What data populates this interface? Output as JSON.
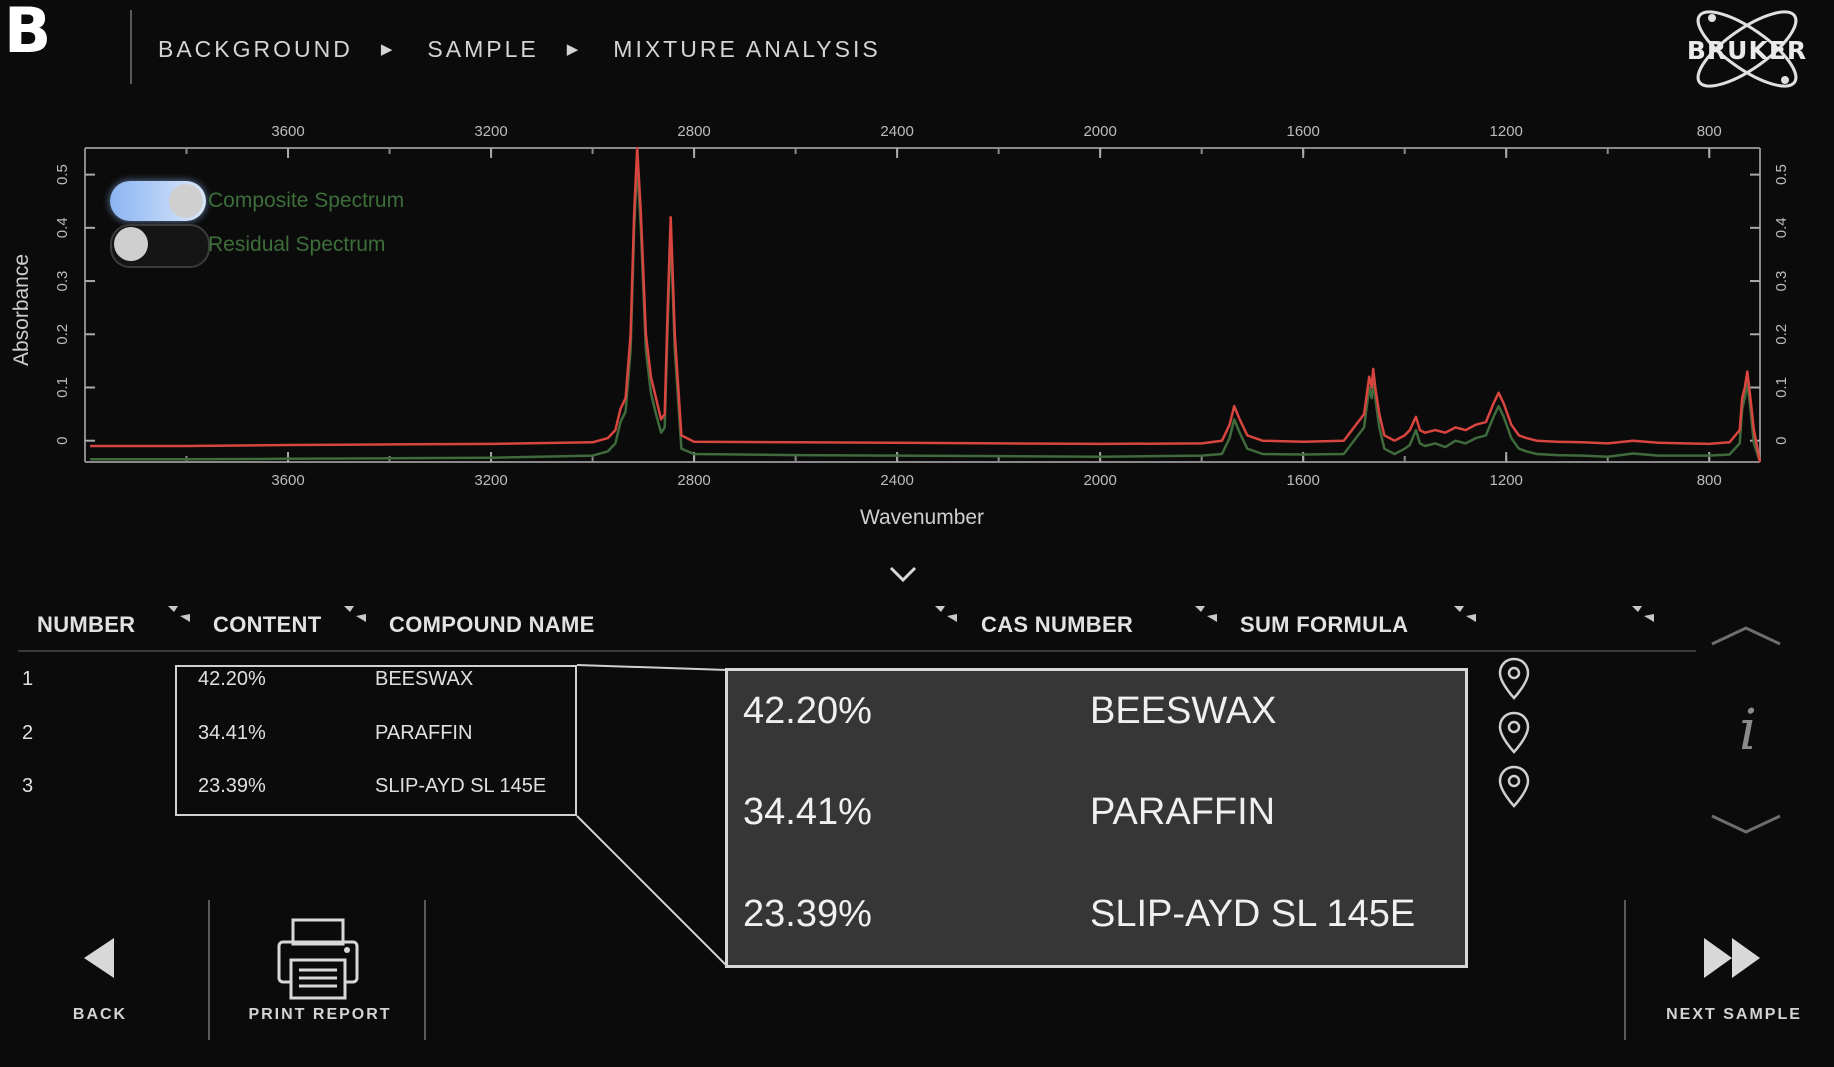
{
  "panel_label": "B",
  "breadcrumb": {
    "items": [
      "BACKGROUND",
      "SAMPLE",
      "MIXTURE ANALYSIS"
    ],
    "separator_icon": "triangle-right-icon"
  },
  "logo": {
    "text": "BRUKER",
    "icon": "atom-orbit-icon"
  },
  "toggles": {
    "composite": {
      "label": "Composite Spectrum",
      "on": true
    },
    "residual": {
      "label": "Residual Spectrum",
      "on": false
    }
  },
  "chart_data": {
    "type": "line",
    "xlabel": "Wavenumber",
    "ylabel": "Absorbance",
    "xlim": [
      4000,
      700
    ],
    "ylim": [
      -0.04,
      0.55
    ],
    "x_ticks": [
      3600,
      3200,
      2800,
      2400,
      2000,
      1600,
      1200,
      800
    ],
    "y_ticks": [
      0,
      0.1,
      0.2,
      0.3,
      0.4,
      0.5
    ],
    "legend": "top-left",
    "grid": false,
    "series": [
      {
        "color": "#d9453f",
        "x": [
          3990,
          3800,
          3600,
          3400,
          3200,
          3000,
          2970,
          2955,
          2945,
          2935,
          2925,
          2918,
          2912,
          2905,
          2895,
          2885,
          2875,
          2865,
          2858,
          2852,
          2846,
          2838,
          2825,
          2800,
          2600,
          2400,
          2200,
          2000,
          1800,
          1760,
          1745,
          1736,
          1725,
          1710,
          1680,
          1600,
          1520,
          1480,
          1470,
          1465,
          1462,
          1458,
          1450,
          1440,
          1420,
          1400,
          1390,
          1378,
          1370,
          1360,
          1340,
          1320,
          1300,
          1280,
          1260,
          1240,
          1225,
          1215,
          1205,
          1190,
          1175,
          1160,
          1140,
          1100,
          1050,
          1000,
          950,
          900,
          850,
          800,
          760,
          740,
          735,
          730,
          725,
          719,
          712,
          700
        ],
        "values": [
          -0.01,
          -0.01,
          -0.008,
          -0.007,
          -0.006,
          -0.003,
          0.005,
          0.02,
          0.06,
          0.08,
          0.2,
          0.43,
          0.55,
          0.43,
          0.2,
          0.12,
          0.08,
          0.04,
          0.05,
          0.25,
          0.42,
          0.2,
          0.01,
          -0.002,
          -0.003,
          -0.004,
          -0.005,
          -0.006,
          -0.005,
          0.0,
          0.03,
          0.065,
          0.04,
          0.01,
          0.0,
          -0.002,
          0.0,
          0.05,
          0.12,
          0.1,
          0.135,
          0.1,
          0.05,
          0.01,
          0.0,
          0.01,
          0.02,
          0.045,
          0.02,
          0.015,
          0.02,
          0.015,
          0.025,
          0.02,
          0.03,
          0.035,
          0.07,
          0.09,
          0.07,
          0.03,
          0.01,
          0.005,
          0.0,
          -0.002,
          -0.003,
          -0.005,
          0.0,
          -0.004,
          -0.005,
          -0.006,
          -0.003,
          0.02,
          0.08,
          0.1,
          0.13,
          0.08,
          0.02,
          -0.04
        ]
      },
      {
        "color": "#3f6a3c",
        "x": [
          3990,
          3800,
          3600,
          3400,
          3200,
          3000,
          2970,
          2955,
          2945,
          2935,
          2925,
          2918,
          2912,
          2905,
          2895,
          2885,
          2875,
          2865,
          2858,
          2852,
          2846,
          2838,
          2825,
          2800,
          2600,
          2400,
          2200,
          2000,
          1800,
          1760,
          1745,
          1736,
          1725,
          1710,
          1680,
          1600,
          1520,
          1480,
          1470,
          1465,
          1462,
          1458,
          1450,
          1440,
          1420,
          1400,
          1390,
          1378,
          1370,
          1360,
          1340,
          1320,
          1300,
          1280,
          1260,
          1240,
          1225,
          1215,
          1205,
          1190,
          1175,
          1160,
          1140,
          1100,
          1050,
          1000,
          950,
          900,
          850,
          800,
          760,
          740,
          735,
          730,
          725,
          719,
          712,
          700
        ],
        "values": [
          -0.035,
          -0.035,
          -0.034,
          -0.033,
          -0.032,
          -0.028,
          -0.02,
          -0.005,
          0.035,
          0.055,
          0.17,
          0.4,
          0.52,
          0.4,
          0.17,
          0.09,
          0.05,
          0.015,
          0.025,
          0.22,
          0.39,
          0.17,
          -0.015,
          -0.025,
          -0.027,
          -0.028,
          -0.029,
          -0.03,
          -0.028,
          -0.025,
          0.005,
          0.04,
          0.015,
          -0.015,
          -0.025,
          -0.026,
          -0.025,
          0.025,
          0.1,
          0.08,
          0.11,
          0.08,
          0.025,
          -0.015,
          -0.025,
          -0.015,
          -0.008,
          0.02,
          -0.005,
          -0.01,
          -0.005,
          -0.012,
          0.0,
          -0.005,
          0.005,
          0.01,
          0.045,
          0.065,
          0.045,
          0.005,
          -0.015,
          -0.02,
          -0.025,
          -0.027,
          -0.028,
          -0.03,
          -0.024,
          -0.028,
          -0.028,
          -0.028,
          -0.026,
          -0.005,
          0.06,
          0.08,
          0.11,
          0.06,
          -0.005,
          -0.04
        ]
      }
    ]
  },
  "table": {
    "headers": [
      "NUMBER",
      "CONTENT",
      "COMPOUND NAME",
      "CAS NUMBER",
      "SUM FORMULA"
    ],
    "sort_icon": "sort-arrows-icon",
    "rows": [
      {
        "number": "1",
        "content": "42.20%",
        "name": "BEESWAX"
      },
      {
        "number": "2",
        "content": "34.41%",
        "name": "PARAFFIN"
      },
      {
        "number": "3",
        "content": "23.39%",
        "name": "SLIP-AYD SL 145E"
      }
    ],
    "row_icon": "location-pin-icon"
  },
  "side": {
    "info": "i",
    "up_icon": "chevron-up-icon",
    "down_icon": "chevron-down-icon"
  },
  "expand_icon": "chevron-down-icon",
  "footer": {
    "back": "BACK",
    "print": "PRINT REPORT",
    "next": "NEXT SAMPLE"
  },
  "colors": {
    "background": "#0b0b0b",
    "composite": "#d9453f",
    "residual": "#3f6a3c",
    "toggle_on": "#8bb5f2"
  }
}
